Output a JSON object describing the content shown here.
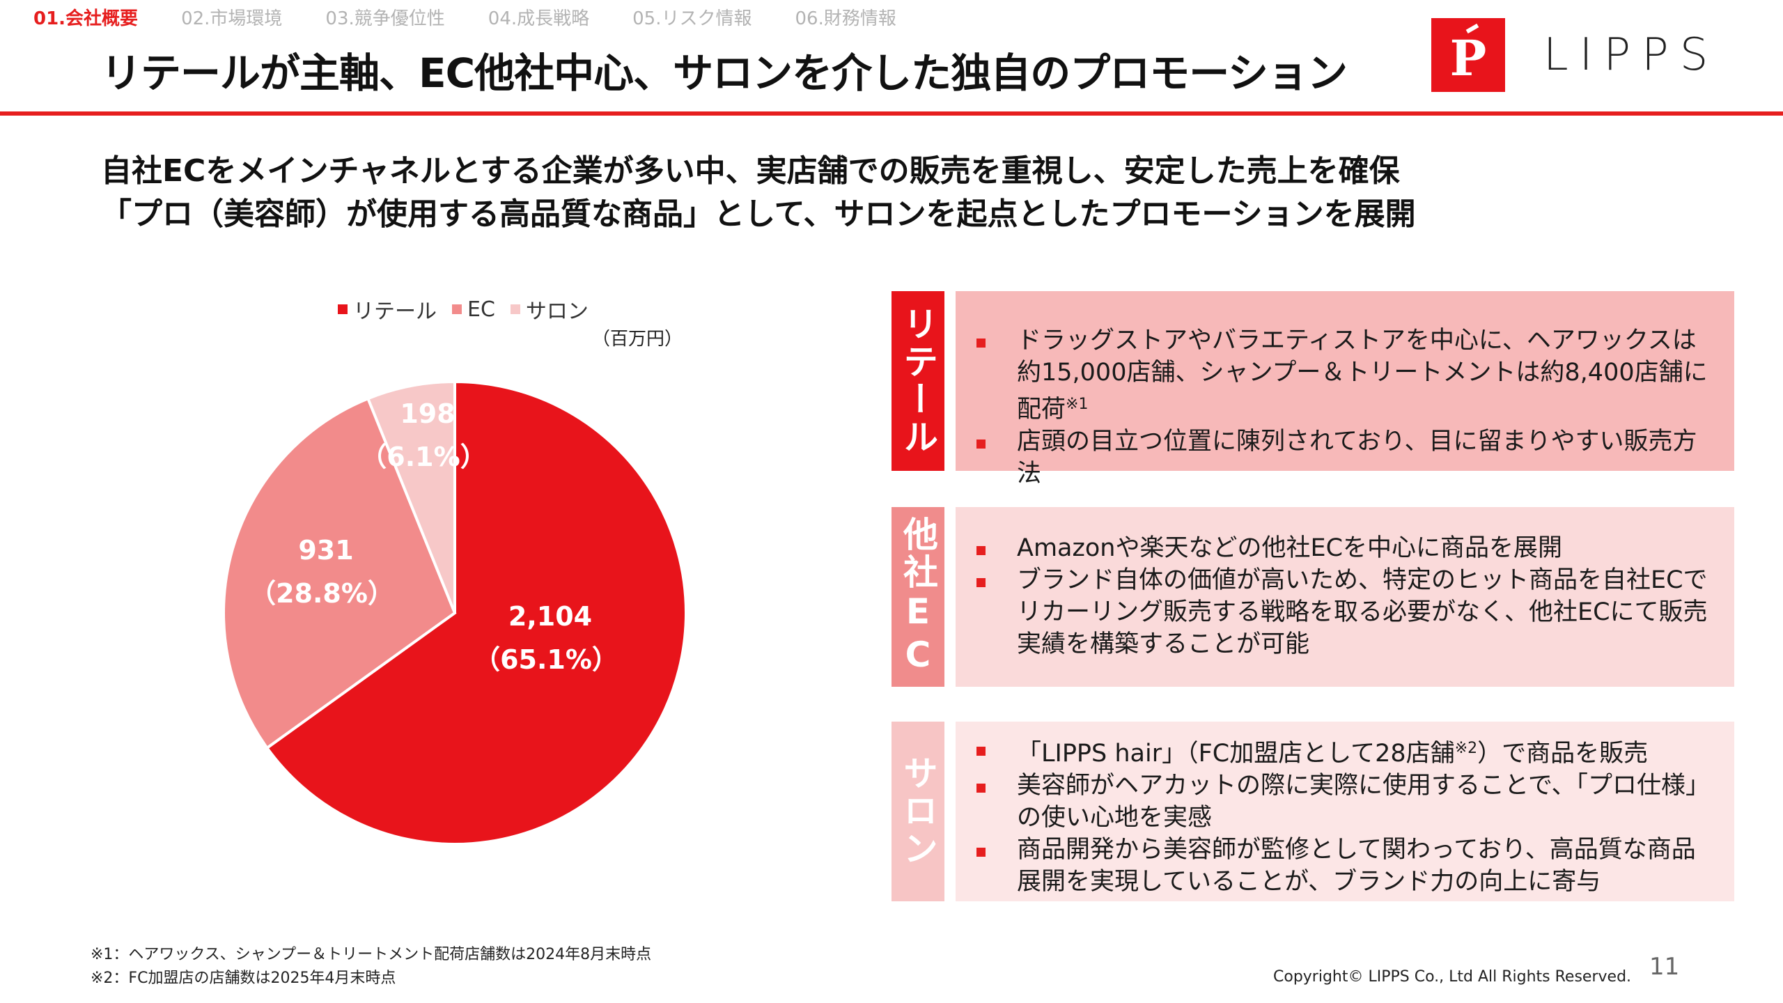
{
  "nav": {
    "tabs": [
      {
        "label": "01.会社概要",
        "active": true
      },
      {
        "label": "02.市場環境",
        "active": false
      },
      {
        "label": "03.競争優位性",
        "active": false
      },
      {
        "label": "04.成長戦略",
        "active": false
      },
      {
        "label": "05.リスク情報",
        "active": false
      },
      {
        "label": "06.財務情報",
        "active": false
      }
    ]
  },
  "header": {
    "title": "リテールが主軸、EC他社中心、サロンを介した独自のプロモーション",
    "logo_text": "LIPPS",
    "logo_mark": "P",
    "accent": "#e61e1e"
  },
  "lead": {
    "line1": "自社ECをメインチャネルとする企業が多い中、実店舗での販売を重視し、安定した売上を確保",
    "line2": "「プロ（美容師）が使用する高品質な商品」として、サロンを起点としたプロモーションを展開"
  },
  "chart_data": {
    "type": "pie",
    "unit": "（百万円）",
    "legend_placement": "top",
    "slices": [
      {
        "name": "リテール",
        "value": 2104,
        "value_label": "2,104",
        "percent_label": "（65.1%）",
        "color": "#e8141b"
      },
      {
        "name": "EC",
        "value": 931,
        "value_label": "931",
        "percent_label": "（28.8%）",
        "color": "#f28b8b"
      },
      {
        "name": "サロン",
        "value": 198,
        "value_label": "198",
        "percent_label": "（6.1%）",
        "color": "#f7c8c8"
      }
    ]
  },
  "panels": [
    {
      "label": "リテール",
      "label_color": "#e8141b",
      "bg_color": "#f7b9b9",
      "bullets": [
        {
          "text": "ドラッグストアやバラエティストアを中心に、ヘアワックスは約15,000店舗、シャンプー＆トリートメントは約8,400店舗に配荷",
          "sup": "※1"
        },
        {
          "text": "店頭の目立つ位置に陳列されており、目に留まりやすい販売方法",
          "sup": ""
        }
      ]
    },
    {
      "label": "他社EC",
      "label_color": "#f08c8c",
      "bg_color": "#fadada",
      "bullets": [
        {
          "text": "Amazonや楽天などの他社ECを中心に商品を展開",
          "sup": ""
        },
        {
          "text": "ブランド自体の価値が高いため、特定のヒット商品を自社ECでリカーリング販売する戦略を取る必要がなく、他社ECにて販売実績を構築することが可能",
          "sup": ""
        }
      ]
    },
    {
      "label": "サロン",
      "label_color": "#f7c5c5",
      "bg_color": "#fce6e6",
      "bullets": [
        {
          "text_before": "「LIPPS hair」（FC加盟店として28店舗",
          "sup": "※2",
          "text_after": "）で商品を販売"
        },
        {
          "text_before": "美容師がヘアカットの際に実際に使用することで、「プロ仕様」の使い心地を実感",
          "sup": "",
          "text_after": ""
        },
        {
          "text_before": "商品開発から美容師が監修として関わっており、高品質な商品展開を実現していることが、ブランド力の向上に寄与",
          "sup": "",
          "text_after": ""
        }
      ]
    }
  ],
  "footnotes": [
    "※1：ヘアワックス、シャンプー＆トリートメント配荷店舗数は2024年8月末時点",
    "※2：FC加盟店の店舗数は2025年4月末時点"
  ],
  "footer": {
    "copyright": "Copyright© LIPPS Co., Ltd All Rights Reserved.",
    "page_number": "11"
  }
}
